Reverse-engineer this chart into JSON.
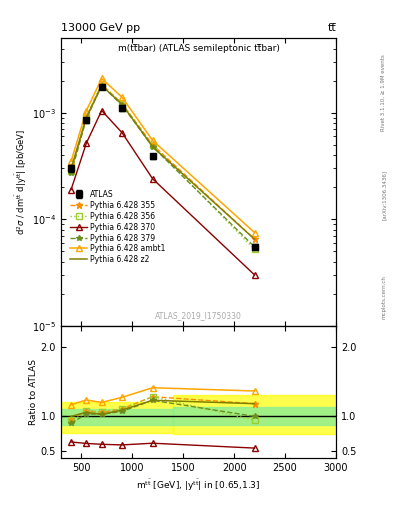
{
  "title_top": "13000 GeV pp",
  "title_right": "tt̅",
  "panel_title": "m(tt̅bar) (ATLAS semileptonic tt̅bar)",
  "watermark": "ATLAS_2019_I1750330",
  "rivet_label": "Rivet 3.1.10, ≥ 1.9M events",
  "arxiv_label": "[arXiv:1306.3436]",
  "mcplots_label": "mcplots.cern.ch",
  "xlabel": "m$^{\\mathregular{t\\bar{t}}}$ [GeV], |y$^{\\mathregular{t\\bar{t}}}$| in [0.65,1.3]",
  "ylabel_main": "d$^2$$\\sigma$ / dm$^{\\mathregular{t\\bar{t}}}$ d|y$^{\\mathregular{t\\bar{t}}}$| [pb/GeV]",
  "ylabel_ratio": "Ratio to ATLAS",
  "x_values": [
    400,
    550,
    700,
    900,
    1200,
    2200
  ],
  "atlas_y": [
    0.0003,
    0.00085,
    0.00175,
    0.0011,
    0.00039,
    5.5e-05
  ],
  "atlas_yerr": [
    2.5e-05,
    5e-05,
    9e-05,
    6e-05,
    2e-05,
    4e-06
  ],
  "py355_y": [
    0.000285,
    0.00092,
    0.00185,
    0.00122,
    0.0005,
    6.5e-05
  ],
  "py356_y": [
    0.000285,
    0.00092,
    0.00185,
    0.00122,
    0.0005,
    5.2e-05
  ],
  "py370_y": [
    0.00019,
    0.00052,
    0.00105,
    0.00065,
    0.00024,
    3e-05
  ],
  "py379_y": [
    0.00027,
    0.00088,
    0.0018,
    0.00118,
    0.00048,
    5.5e-05
  ],
  "py_ambt1_y": [
    0.00035,
    0.00105,
    0.0021,
    0.0014,
    0.00055,
    7.5e-05
  ],
  "py_z2_y": [
    0.0003,
    0.0009,
    0.0018,
    0.0012,
    0.00048,
    6.5e-05
  ],
  "color_355": "#FF8C00",
  "color_356": "#9ACD32",
  "color_370": "#8B0000",
  "color_379": "#6B8E23",
  "color_ambt1": "#FFA500",
  "color_z2": "#808000",
  "color_atlas": "#000000",
  "band1_xlo": 300,
  "band1_xhi": 1400,
  "band2_xlo": 1400,
  "band2_xhi": 3000,
  "band1_yellow_lo": 0.76,
  "band1_yellow_hi": 1.2,
  "band1_green_lo": 0.88,
  "band1_green_hi": 1.11,
  "band2_yellow_lo": 0.75,
  "band2_yellow_hi": 1.3,
  "band2_green_lo": 0.87,
  "band2_green_hi": 1.13,
  "ratio_yticks": [
    0.5,
    1.0,
    2.0
  ],
  "ratio_ylim": [
    0.4,
    2.3
  ],
  "main_ylim": [
    1e-05,
    0.005
  ],
  "xlim": [
    300,
    3000
  ]
}
